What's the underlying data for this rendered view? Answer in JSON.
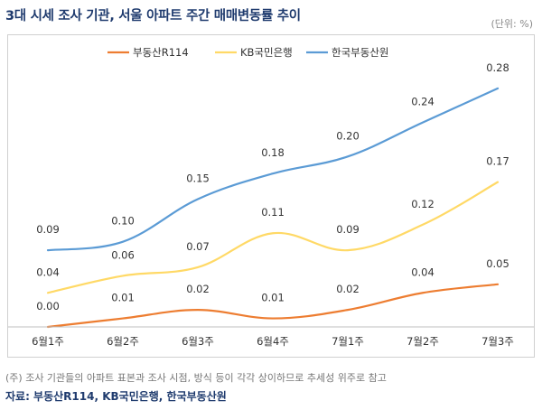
{
  "title": "3대 시세 조사 기관, 서울 아파트 주간 매매변동률 추이",
  "unit": "(단위: %)",
  "note": "(주) 조사 기관들의 아파트 표본과 조사 시점, 방식 등이 각각 상이하므로 추세성 위주로 참고",
  "source": "자료: 부동산R114, KB국민은행, 한국부동산원",
  "chart_data": {
    "type": "line",
    "categories": [
      "6월1주",
      "6월2주",
      "6월3주",
      "6월4주",
      "7월1주",
      "7월2주",
      "7월3주"
    ],
    "series": [
      {
        "name": "부동산R114",
        "color": "#ed7d31",
        "values": [
          0.0,
          0.01,
          0.02,
          0.01,
          0.02,
          0.04,
          0.05
        ],
        "labels": [
          "0.00",
          "0.01",
          "0.02",
          "0.01",
          "0.02",
          "0.04",
          "0.05"
        ]
      },
      {
        "name": "KB국민은행",
        "color": "#ffd966",
        "values": [
          0.04,
          0.06,
          0.07,
          0.11,
          0.09,
          0.12,
          0.17
        ],
        "labels": [
          "0.04",
          "0.06",
          "0.07",
          "0.11",
          "0.09",
          "0.12",
          "0.17"
        ]
      },
      {
        "name": "한국부동산원",
        "color": "#5b9bd5",
        "values": [
          0.09,
          0.1,
          0.15,
          0.18,
          0.2,
          0.24,
          0.28
        ],
        "labels": [
          "0.09",
          "0.10",
          "0.15",
          "0.18",
          "0.20",
          "0.24",
          "0.28"
        ]
      }
    ],
    "ylim": [
      0,
      0.3
    ],
    "grid": false,
    "legend_position": "top-center"
  }
}
